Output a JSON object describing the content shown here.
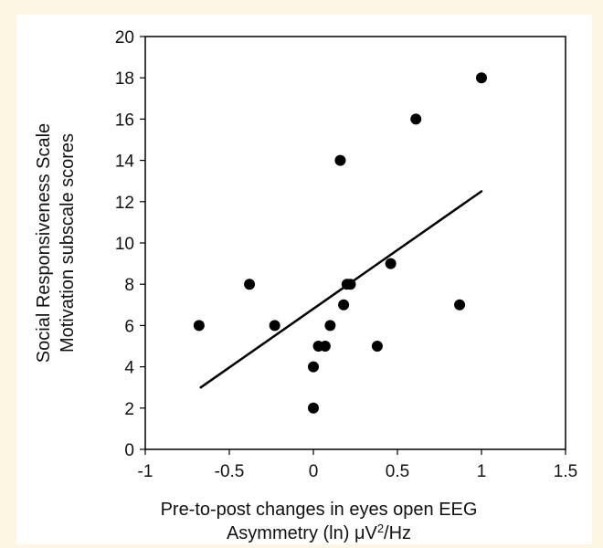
{
  "chart_data": {
    "type": "scatter",
    "title": "",
    "xlabel_lines": [
      "Pre-to-post changes in eyes open EEG",
      "Asymmetry (ln) μV²/Hz"
    ],
    "xlabel_line2_parts": {
      "pre": "Asymmetry (ln) μV",
      "sup": "2",
      "post": "/Hz"
    },
    "ylabel_lines": [
      "Social Responsiveness Scale",
      "Motivation subscale scores"
    ],
    "xlim": [
      -1,
      1.5
    ],
    "ylim": [
      0,
      20
    ],
    "x_ticks": [
      -1,
      -0.5,
      0,
      0.5,
      1,
      1.5
    ],
    "x_tick_labels": [
      "-1",
      "-0.5",
      "0",
      "0.5",
      "1",
      "1.5"
    ],
    "y_ticks": [
      0,
      2,
      4,
      6,
      8,
      10,
      12,
      14,
      16,
      18,
      20
    ],
    "y_tick_labels": [
      "0",
      "2",
      "4",
      "6",
      "8",
      "10",
      "12",
      "14",
      "16",
      "18",
      "20"
    ],
    "grid": false,
    "legend": "none",
    "points": [
      {
        "x": -0.68,
        "y": 6
      },
      {
        "x": -0.38,
        "y": 8
      },
      {
        "x": -0.23,
        "y": 6
      },
      {
        "x": 0.0,
        "y": 2
      },
      {
        "x": 0.0,
        "y": 4
      },
      {
        "x": 0.03,
        "y": 5
      },
      {
        "x": 0.07,
        "y": 5
      },
      {
        "x": 0.1,
        "y": 6
      },
      {
        "x": 0.16,
        "y": 14
      },
      {
        "x": 0.18,
        "y": 7
      },
      {
        "x": 0.2,
        "y": 8
      },
      {
        "x": 0.22,
        "y": 8
      },
      {
        "x": 0.38,
        "y": 5
      },
      {
        "x": 0.46,
        "y": 9
      },
      {
        "x": 0.61,
        "y": 16
      },
      {
        "x": 0.87,
        "y": 7
      },
      {
        "x": 1.0,
        "y": 18
      }
    ],
    "trendline": {
      "x": [
        -0.67,
        1.0
      ],
      "y": [
        3.0,
        12.5
      ]
    },
    "colors": {
      "points": "#000000",
      "line": "#000000",
      "axes": "#000000"
    }
  }
}
